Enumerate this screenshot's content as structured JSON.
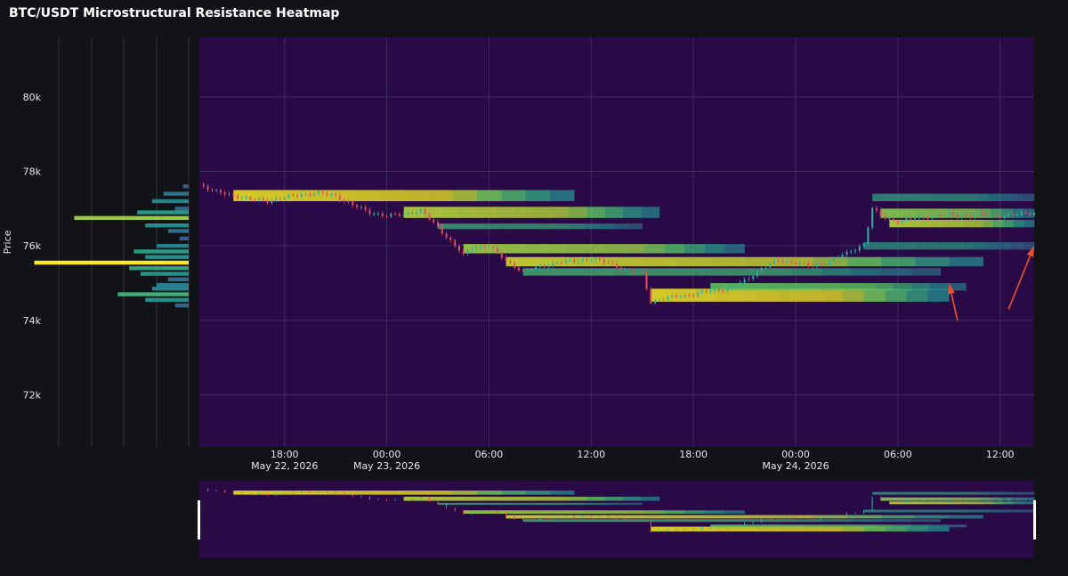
{
  "title": "BTC/USDT Microstructural Resistance Heatmap",
  "colors": {
    "page_bg": "#111317",
    "plot_bg": "#2a0a46",
    "grid": "#3e2a5c",
    "text": "#e6e6e6",
    "up": "#2bb3a5",
    "down": "#e0525f",
    "arrow": "#e8532e"
  },
  "chart_data": {
    "type": "heatmap",
    "title": "BTC/USDT Microstructural Resistance Heatmap",
    "ylabel": "Price",
    "xlabel": "",
    "ylim": [
      70600,
      81600
    ],
    "xlim_hours": [
      0,
      1
    ],
    "x_start": "May 22, 2026 13:00",
    "x_end": "May 24, 2026 14:00",
    "y_ticks": [
      {
        "value": 72000,
        "label": "72k"
      },
      {
        "value": 74000,
        "label": "74k"
      },
      {
        "value": 76000,
        "label": "76k"
      },
      {
        "value": 78000,
        "label": "78k"
      },
      {
        "value": 80000,
        "label": "80k"
      }
    ],
    "x_ticks": [
      {
        "time": "May 22, 2026 18:00",
        "label": "18:00",
        "sublabel": "May 22, 2026"
      },
      {
        "time": "May 23, 2026 00:00",
        "label": "00:00",
        "sublabel": "May 23, 2026"
      },
      {
        "time": "May 23, 2026 06:00",
        "label": "06:00",
        "sublabel": ""
      },
      {
        "time": "May 23, 2026 12:00",
        "label": "12:00",
        "sublabel": ""
      },
      {
        "time": "May 23, 2026 18:00",
        "label": "18:00",
        "sublabel": ""
      },
      {
        "time": "May 24, 2026 00:00",
        "label": "00:00",
        "sublabel": "May 24, 2026"
      },
      {
        "time": "May 24, 2026 06:00",
        "label": "06:00",
        "sublabel": ""
      },
      {
        "time": "May 24, 2026 12:00",
        "label": "12:00",
        "sublabel": ""
      }
    ],
    "price_path": [
      [
        "May 22, 2026 13:00",
        77650
      ],
      [
        "May 22, 2026 14:00",
        77450
      ],
      [
        "May 22, 2026 15:00",
        77350
      ],
      [
        "May 22, 2026 16:00",
        77250
      ],
      [
        "May 22, 2026 17:00",
        77200
      ],
      [
        "May 22, 2026 18:00",
        77300
      ],
      [
        "May 22, 2026 19:00",
        77380
      ],
      [
        "May 22, 2026 20:00",
        77420
      ],
      [
        "May 22, 2026 21:00",
        77350
      ],
      [
        "May 22, 2026 22:00",
        77100
      ],
      [
        "May 22, 2026 23:00",
        76900
      ],
      [
        "May 23, 2026 00:00",
        76800
      ],
      [
        "May 23, 2026 01:00",
        76850
      ],
      [
        "May 23, 2026 02:00",
        76950
      ],
      [
        "May 23, 2026 03:00",
        76500
      ],
      [
        "May 23, 2026 04:00",
        76000
      ],
      [
        "May 23, 2026 04:30",
        75750
      ],
      [
        "May 23, 2026 05:00",
        75950
      ],
      [
        "May 23, 2026 06:00",
        76000
      ],
      [
        "May 23, 2026 07:00",
        75600
      ],
      [
        "May 23, 2026 08:00",
        75300
      ],
      [
        "May 23, 2026 09:00",
        75450
      ],
      [
        "May 23, 2026 10:00",
        75550
      ],
      [
        "May 23, 2026 11:00",
        75600
      ],
      [
        "May 23, 2026 12:00",
        75650
      ],
      [
        "May 23, 2026 13:00",
        75550
      ],
      [
        "May 23, 2026 14:00",
        75350
      ],
      [
        "May 23, 2026 15:00",
        75250
      ],
      [
        "May 23, 2026 15:30",
        74500
      ],
      [
        "May 23, 2026 16:00",
        74550
      ],
      [
        "May 23, 2026 17:00",
        74650
      ],
      [
        "May 23, 2026 18:00",
        74700
      ],
      [
        "May 23, 2026 19:00",
        74800
      ],
      [
        "May 23, 2026 20:00",
        74850
      ],
      [
        "May 23, 2026 21:00",
        75050
      ],
      [
        "May 23, 2026 22:00",
        75400
      ],
      [
        "May 23, 2026 23:00",
        75600
      ],
      [
        "May 24, 2026 00:00",
        75550
      ],
      [
        "May 24, 2026 01:00",
        75450
      ],
      [
        "May 24, 2026 02:00",
        75600
      ],
      [
        "May 24, 2026 03:00",
        75800
      ],
      [
        "May 24, 2026 04:00",
        76050
      ],
      [
        "May 24, 2026 04:30",
        77000
      ],
      [
        "May 24, 2026 05:00",
        76800
      ],
      [
        "May 24, 2026 06:00",
        76650
      ],
      [
        "May 24, 2026 07:00",
        76750
      ],
      [
        "May 24, 2026 08:00",
        76800
      ],
      [
        "May 24, 2026 09:00",
        76850
      ],
      [
        "May 24, 2026 10:00",
        76800
      ],
      [
        "May 24, 2026 11:00",
        76850
      ],
      [
        "May 24, 2026 12:00",
        76800
      ],
      [
        "May 24, 2026 13:00",
        76850
      ],
      [
        "May 24, 2026 14:00",
        76900
      ]
    ],
    "resistance_zones": [
      {
        "start": "May 22, 2026 15:00",
        "end": "May 23, 2026 11:00",
        "low": 77200,
        "high": 77500,
        "strength": 1.0
      },
      {
        "start": "May 23, 2026 01:00",
        "end": "May 23, 2026 16:00",
        "low": 76750,
        "high": 77050,
        "strength": 0.9
      },
      {
        "start": "May 23, 2026 03:00",
        "end": "May 23, 2026 15:00",
        "low": 76450,
        "high": 76600,
        "strength": 0.5
      },
      {
        "start": "May 23, 2026 04:30",
        "end": "May 23, 2026 21:00",
        "low": 75800,
        "high": 76050,
        "strength": 0.85
      },
      {
        "start": "May 23, 2026 07:00",
        "end": "May 24, 2026 11:00",
        "low": 75450,
        "high": 75700,
        "strength": 0.95
      },
      {
        "start": "May 23, 2026 08:00",
        "end": "May 24, 2026 08:30",
        "low": 75200,
        "high": 75400,
        "strength": 0.55
      },
      {
        "start": "May 23, 2026 15:30",
        "end": "May 24, 2026 09:00",
        "low": 74500,
        "high": 74850,
        "strength": 1.0
      },
      {
        "start": "May 23, 2026 19:00",
        "end": "May 24, 2026 10:00",
        "low": 74800,
        "high": 75000,
        "strength": 0.7
      },
      {
        "start": "May 24, 2026 04:30",
        "end": "May 24, 2026 14:00",
        "low": 77200,
        "high": 77400,
        "strength": 0.45
      },
      {
        "start": "May 24, 2026 05:00",
        "end": "May 24, 2026 14:00",
        "low": 76750,
        "high": 77000,
        "strength": 0.8
      },
      {
        "start": "May 24, 2026 05:30",
        "end": "May 24, 2026 14:00",
        "low": 76500,
        "high": 76700,
        "strength": 0.9
      },
      {
        "start": "May 24, 2026 04:00",
        "end": "May 24, 2026 14:00",
        "low": 75900,
        "high": 76100,
        "strength": 0.4
      }
    ],
    "volume_profile": [
      {
        "price": 77600,
        "value": 0.05
      },
      {
        "price": 77400,
        "value": 0.22
      },
      {
        "price": 77200,
        "value": 0.32
      },
      {
        "price": 77000,
        "value": 0.12
      },
      {
        "price": 76900,
        "value": 0.45
      },
      {
        "price": 76750,
        "value": 1.0
      },
      {
        "price": 76550,
        "value": 0.38
      },
      {
        "price": 76400,
        "value": 0.18
      },
      {
        "price": 76200,
        "value": 0.08
      },
      {
        "price": 76000,
        "value": 0.28
      },
      {
        "price": 75850,
        "value": 0.48
      },
      {
        "price": 75700,
        "value": 0.38
      },
      {
        "price": 75550,
        "value": 1.35
      },
      {
        "price": 75400,
        "value": 0.52
      },
      {
        "price": 75250,
        "value": 0.42
      },
      {
        "price": 75100,
        "value": 0.18
      },
      {
        "price": 74950,
        "value": 0.28
      },
      {
        "price": 74850,
        "value": 0.32
      },
      {
        "price": 74700,
        "value": 0.62
      },
      {
        "price": 74550,
        "value": 0.38
      },
      {
        "price": 74400,
        "value": 0.12
      }
    ],
    "annotations": [
      {
        "type": "arrow",
        "from": [
          "May 24, 2026 09:30",
          74000
        ],
        "to": [
          "May 24, 2026 09:00",
          75000
        ]
      },
      {
        "type": "arrow",
        "from": [
          "May 24, 2026 12:30",
          74300
        ],
        "to": [
          "May 24, 2026 14:00",
          76000
        ]
      }
    ],
    "grid": true,
    "legend": "none",
    "range_slider": true
  }
}
